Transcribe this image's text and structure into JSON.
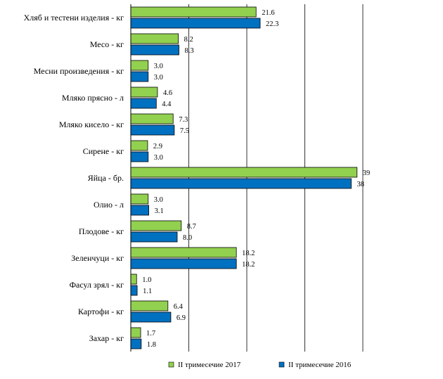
{
  "chart_data": {
    "type": "bar",
    "orientation": "horizontal",
    "categories": [
      "Хляб и тестени изделия - кг",
      "Месо - кг",
      "Месни произведения  - кг",
      "Мляко прясно - л",
      "Мляко кисело - кг",
      "Сирене - кг",
      "Яйца - бр.",
      "Олио - л",
      "Плодове - кг",
      "Зеленчуци - кг",
      "Фасул зрял - кг",
      "Картофи - кг",
      "Захар - кг"
    ],
    "series": [
      {
        "name": "II тримесечие 2017",
        "color": "#92d050",
        "values": [
          21.6,
          8.2,
          3.0,
          4.6,
          7.3,
          2.9,
          39,
          3.0,
          8.7,
          18.2,
          1.0,
          6.4,
          1.7
        ],
        "labels": [
          "21.6",
          "8.2",
          "3.0",
          "4.6",
          "7.3",
          "2.9",
          "39",
          "3.0",
          "8.7",
          "18.2",
          "1.0",
          "6.4",
          "1.7"
        ]
      },
      {
        "name": "II тримесечие 2016",
        "color": "#0070c0",
        "values": [
          22.3,
          8.3,
          3.0,
          4.4,
          7.5,
          3.0,
          38,
          3.1,
          8.0,
          18.2,
          1.1,
          6.9,
          1.8
        ],
        "labels": [
          "22.3",
          "8.3",
          "3.0",
          "4.4",
          "7.5",
          "3.0",
          "38",
          "3.1",
          "8.0",
          "18.2",
          "1.1",
          "6.9",
          "1.8"
        ]
      }
    ],
    "xlim": [
      0,
      40
    ],
    "gridlines": [
      10,
      20,
      30,
      40
    ],
    "grid": true,
    "legend_position": "bottom"
  }
}
